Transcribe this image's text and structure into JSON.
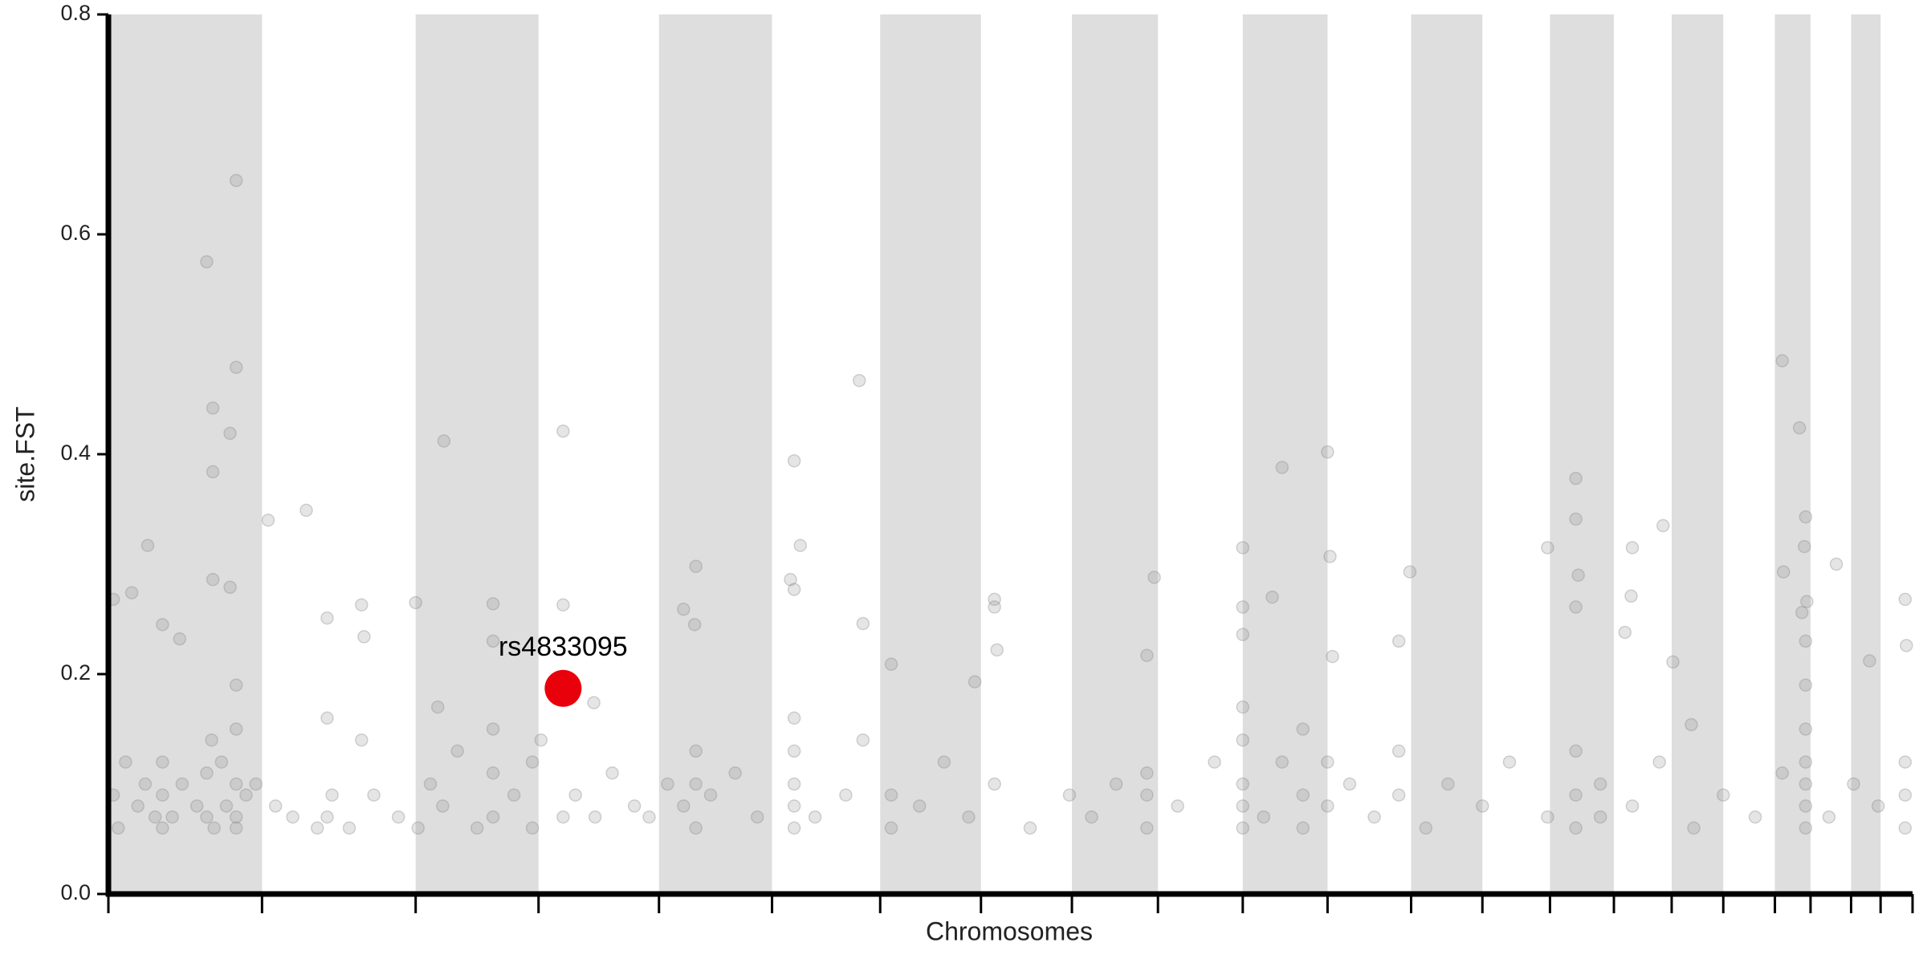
{
  "chart_data": {
    "type": "scatter",
    "xlabel": "Chromosomes",
    "ylabel": "site.FST",
    "xlim": [
      0,
      1468
    ],
    "xticks": [
      0,
      125,
      250,
      350,
      448,
      540,
      628,
      710,
      784,
      854,
      923,
      992,
      1060,
      1118,
      1173,
      1225,
      1272,
      1314,
      1356,
      1385,
      1418,
      1442,
      1468
    ],
    "ylim": [
      0,
      0.8
    ],
    "yticks": [
      {
        "value": 0,
        "label": "0.0"
      },
      0.2,
      0.4,
      0.6,
      0.8
    ],
    "color": "#888888",
    "x": [
      80,
      104,
      104,
      85,
      99,
      85,
      85,
      99,
      32,
      4,
      19,
      44,
      58,
      130,
      161,
      178,
      206,
      208,
      250,
      273,
      313,
      313,
      370,
      370,
      395,
      478,
      468,
      477,
      558,
      563,
      555,
      558,
      611,
      614,
      637,
      721,
      721,
      723,
      705,
      851,
      845,
      923,
      923,
      923,
      947,
      955,
      992,
      994,
      996,
      1059,
      1050,
      1171,
      1194,
      1194,
      1196,
      1194,
      1240,
      1239,
      1265,
      1234,
      1362,
      1376,
      1381,
      1380,
      1406,
      1382,
      1378,
      1363,
      1462,
      1433,
      1463,
      1273,
      1288,
      4,
      8,
      14,
      24,
      30,
      38,
      44,
      44,
      44,
      52,
      60,
      72,
      80,
      80,
      84,
      86,
      92,
      96,
      104,
      104,
      104,
      104,
      104,
      112,
      120,
      136,
      150,
      170,
      178,
      178,
      182,
      196,
      206,
      216,
      236,
      252,
      262,
      268,
      272,
      284,
      300,
      313,
      313,
      313,
      330,
      345,
      345,
      352,
      370,
      380,
      396,
      410,
      428,
      440,
      455,
      468,
      478,
      478,
      478,
      490,
      510,
      528,
      558,
      558,
      558,
      558,
      558,
      575,
      600,
      614,
      637,
      637,
      660,
      680,
      700,
      721,
      750,
      782,
      800,
      820,
      845,
      845,
      845,
      870,
      900,
      923,
      923,
      923,
      923,
      923,
      940,
      955,
      972,
      972,
      972,
      992,
      992,
      1010,
      1030,
      1050,
      1050,
      1072,
      1090,
      1118,
      1140,
      1171,
      1194,
      1194,
      1194,
      1214,
      1214,
      1240,
      1262,
      1290,
      1314,
      1340,
      1362,
      1381,
      1381,
      1381,
      1381,
      1381,
      1381,
      1381,
      1400,
      1420,
      1440,
      1462,
      1462,
      1462
    ],
    "values": [
      0.575,
      0.649,
      0.479,
      0.442,
      0.419,
      0.384,
      0.286,
      0.279,
      0.317,
      0.268,
      0.274,
      0.245,
      0.232,
      0.34,
      0.349,
      0.251,
      0.263,
      0.234,
      0.265,
      0.412,
      0.264,
      0.23,
      0.263,
      0.421,
      0.174,
      0.298,
      0.259,
      0.245,
      0.394,
      0.317,
      0.286,
      0.277,
      0.467,
      0.246,
      0.209,
      0.268,
      0.261,
      0.222,
      0.193,
      0.288,
      0.217,
      0.315,
      0.261,
      0.236,
      0.27,
      0.388,
      0.402,
      0.307,
      0.216,
      0.293,
      0.23,
      0.315,
      0.378,
      0.341,
      0.29,
      0.261,
      0.315,
      0.271,
      0.335,
      0.238,
      0.485,
      0.424,
      0.343,
      0.316,
      0.3,
      0.266,
      0.256,
      0.293,
      0.268,
      0.212,
      0.226,
      0.211,
      0.154,
      0.09,
      0.06,
      0.12,
      0.08,
      0.1,
      0.07,
      0.06,
      0.09,
      0.12,
      0.07,
      0.1,
      0.08,
      0.11,
      0.07,
      0.14,
      0.06,
      0.12,
      0.08,
      0.07,
      0.1,
      0.15,
      0.19,
      0.06,
      0.09,
      0.1,
      0.08,
      0.07,
      0.06,
      0.07,
      0.16,
      0.09,
      0.06,
      0.14,
      0.09,
      0.07,
      0.06,
      0.1,
      0.17,
      0.08,
      0.13,
      0.06,
      0.07,
      0.11,
      0.15,
      0.09,
      0.06,
      0.12,
      0.14,
      0.07,
      0.09,
      0.07,
      0.11,
      0.08,
      0.07,
      0.1,
      0.08,
      0.06,
      0.1,
      0.13,
      0.09,
      0.11,
      0.07,
      0.06,
      0.08,
      0.1,
      0.13,
      0.16,
      0.07,
      0.09,
      0.14,
      0.06,
      0.09,
      0.08,
      0.12,
      0.07,
      0.1,
      0.06,
      0.09,
      0.07,
      0.1,
      0.06,
      0.09,
      0.11,
      0.08,
      0.12,
      0.06,
      0.08,
      0.1,
      0.14,
      0.17,
      0.07,
      0.12,
      0.06,
      0.09,
      0.15,
      0.08,
      0.12,
      0.1,
      0.07,
      0.09,
      0.13,
      0.06,
      0.1,
      0.08,
      0.12,
      0.07,
      0.06,
      0.09,
      0.13,
      0.07,
      0.1,
      0.08,
      0.12,
      0.06,
      0.09,
      0.07,
      0.11,
      0.06,
      0.08,
      0.1,
      0.12,
      0.15,
      0.19,
      0.23,
      0.07,
      0.1,
      0.08,
      0.06,
      0.09,
      0.12
    ],
    "highlight": {
      "label": "rs4833095",
      "x": 370,
      "value": 0.187,
      "color": "#e8000b"
    }
  }
}
